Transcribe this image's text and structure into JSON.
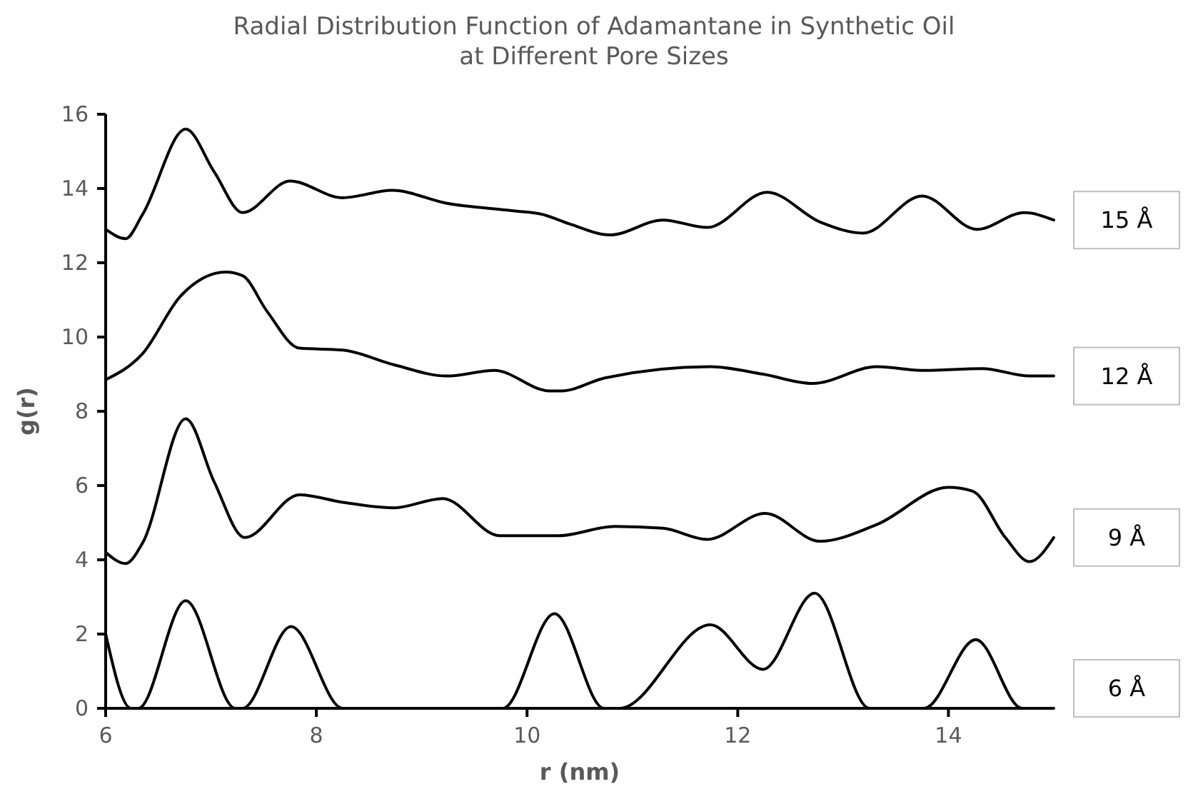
{
  "chart_data": {
    "type": "line",
    "title": "Radial Distribution Function of Adamantane in Synthetic Oil\nat Different Pore Sizes",
    "xlabel": "r (nm)",
    "ylabel": "g(r)",
    "xlim": [
      6,
      15
    ],
    "xticks": [
      6,
      8,
      10,
      12,
      14
    ],
    "ylim": [
      0,
      16
    ],
    "yticks": [
      0,
      2,
      4,
      6,
      8,
      10,
      12,
      14,
      16
    ],
    "grid": false,
    "marker": "none",
    "line_style": "solid",
    "series": [
      {
        "name": "15 Å",
        "color": "#000000",
        "x": [
          6.0,
          6.19,
          6.35,
          6.76,
          7.03,
          7.3,
          7.75,
          8.25,
          8.72,
          9.24,
          9.87,
          10.15,
          10.4,
          10.79,
          11.29,
          11.71,
          12.28,
          12.78,
          13.19,
          13.75,
          14.27,
          14.72,
          15.0
        ],
        "values": [
          12.9,
          12.65,
          13.3,
          15.6,
          14.45,
          13.35,
          14.2,
          13.75,
          13.95,
          13.6,
          13.4,
          13.3,
          13.05,
          12.75,
          13.15,
          12.95,
          13.9,
          13.1,
          12.8,
          13.8,
          12.9,
          13.35,
          13.15
        ]
      },
      {
        "name": "12 Å",
        "color": "#000000",
        "x": [
          6.0,
          6.35,
          6.71,
          7.14,
          7.3,
          7.53,
          7.84,
          8.25,
          8.74,
          9.24,
          9.69,
          10.21,
          10.33,
          10.74,
          11.74,
          12.24,
          12.71,
          13.32,
          13.77,
          14.32,
          14.77,
          15.0
        ],
        "values": [
          8.85,
          9.55,
          11.1,
          11.75,
          11.65,
          10.7,
          9.7,
          9.65,
          9.25,
          8.95,
          9.1,
          8.55,
          8.55,
          8.9,
          9.2,
          9.0,
          8.75,
          9.2,
          9.1,
          9.15,
          8.95,
          8.95
        ]
      },
      {
        "name": "9 Å",
        "color": "#000000",
        "x": [
          6.0,
          6.19,
          6.35,
          6.76,
          7.03,
          7.32,
          7.84,
          8.25,
          8.74,
          9.2,
          9.74,
          10.3,
          10.83,
          11.29,
          11.71,
          12.26,
          12.78,
          13.32,
          14.0,
          14.23,
          14.54,
          14.77,
          15.0
        ],
        "values": [
          4.2,
          3.9,
          4.45,
          7.8,
          6.1,
          4.6,
          5.75,
          5.55,
          5.4,
          5.65,
          4.65,
          4.65,
          4.9,
          4.85,
          4.55,
          5.25,
          4.5,
          4.95,
          5.95,
          5.85,
          4.6,
          3.95,
          4.6
        ]
      },
      {
        "name": "6 Å",
        "color": "#000000",
        "x": [
          6.0,
          6.24,
          6.31,
          6.76,
          7.23,
          7.3,
          7.76,
          8.25,
          9.0,
          9.77,
          10.26,
          10.73,
          10.88,
          11.74,
          12.24,
          12.73,
          13.25,
          13.77,
          14.26,
          14.7,
          15.0
        ],
        "values": [
          2.0,
          0,
          0,
          2.9,
          0,
          0,
          2.2,
          0,
          0,
          0,
          2.55,
          0,
          0,
          2.25,
          1.05,
          3.1,
          0,
          0,
          1.85,
          0,
          0
        ]
      }
    ]
  }
}
